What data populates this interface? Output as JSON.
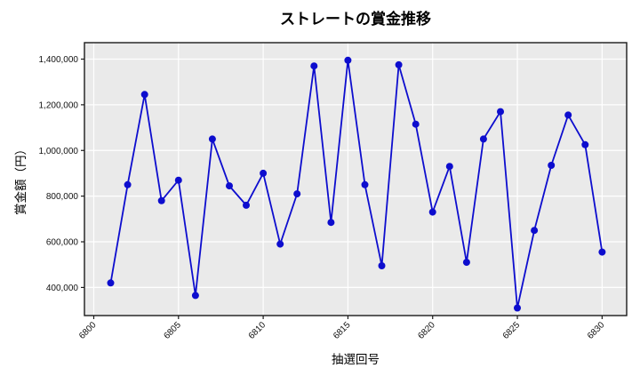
{
  "title": "ストレートの賞金推移",
  "chart_data": {
    "type": "line",
    "title": "ストレートの賞金推移",
    "xlabel": "抽選回号",
    "ylabel": "賞金額（円）",
    "x": [
      6801,
      6802,
      6803,
      6804,
      6805,
      6806,
      6807,
      6808,
      6809,
      6810,
      6811,
      6812,
      6813,
      6814,
      6815,
      6816,
      6817,
      6818,
      6819,
      6820,
      6821,
      6822,
      6823,
      6824,
      6825,
      6826,
      6827,
      6828,
      6829,
      6830
    ],
    "values": [
      420000,
      850000,
      1245000,
      780000,
      870000,
      365000,
      1050000,
      845000,
      760000,
      900000,
      590000,
      810000,
      1370000,
      685000,
      1395000,
      850000,
      495000,
      1375000,
      1115000,
      730000,
      930000,
      510000,
      1050000,
      1170000,
      310000,
      650000,
      935000,
      1155000,
      1025000,
      555000
    ],
    "x_ticks": [
      6800,
      6805,
      6810,
      6815,
      6820,
      6825,
      6830
    ],
    "y_ticks": [
      400000,
      600000,
      800000,
      1000000,
      1200000,
      1400000
    ],
    "xlim": [
      6799.45,
      6831.45
    ],
    "ylim": [
      277000,
      1472000
    ],
    "grid": true,
    "legend": null,
    "colors": {
      "line": "#0d0dce",
      "marker": "#0d0dce",
      "plot_background": "#eaeaea",
      "grid": "#ffffff",
      "spine": "#1a1a1a",
      "figure_background": "#ffffff"
    }
  }
}
